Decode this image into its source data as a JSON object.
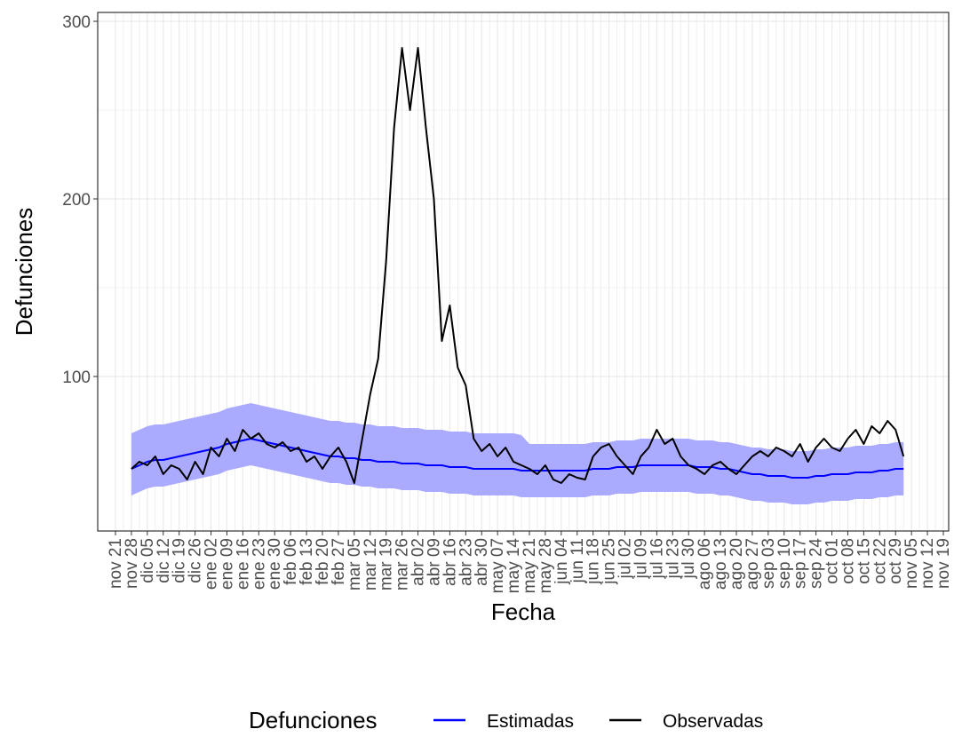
{
  "chart_data": {
    "type": "line",
    "x_label": "Fecha",
    "y_label": "Defunciones",
    "legend_title": "Defunciones",
    "legend_position": "bottom",
    "grid": true,
    "ylim": [
      13,
      305
    ],
    "yticks": [
      100,
      200,
      300
    ],
    "categories": [
      "nov 21",
      null,
      "nov 28",
      null,
      "dic 05",
      null,
      "dic 12",
      null,
      "dic 19",
      null,
      "dic 26",
      null,
      "ene 02",
      null,
      "ene 09",
      null,
      "ene 16",
      null,
      "ene 23",
      null,
      "ene 30",
      null,
      "feb 06",
      null,
      "feb 13",
      null,
      "feb 20",
      null,
      "feb 27",
      null,
      "mar 05",
      null,
      "mar 12",
      null,
      "mar 19",
      null,
      "mar 26",
      null,
      "abr 02",
      null,
      "abr 09",
      null,
      "abr 16",
      null,
      "abr 23",
      null,
      "abr 30",
      null,
      "may 07",
      null,
      "may 14",
      null,
      "may 21",
      null,
      "may 28",
      null,
      "jun 04",
      null,
      "jun 11",
      null,
      "jun 18",
      null,
      "jun 25",
      null,
      "jul 02",
      null,
      "jul 09",
      null,
      "jul 16",
      null,
      "jul 23",
      null,
      "jul 30",
      null,
      "ago 06",
      null,
      "ago 13",
      null,
      "ago 20",
      null,
      "ago 27",
      null,
      "sep 03",
      null,
      "sep 10",
      null,
      "sep 17",
      null,
      "sep 24",
      null,
      "oct 01",
      null,
      "oct 08",
      null,
      "oct 15",
      null,
      "oct 22",
      null,
      "oct 29",
      null,
      "nov 05",
      null,
      "nov 12",
      null,
      "nov 19"
    ],
    "band": {
      "color": "#aaaaff",
      "lower": [
        null,
        null,
        33,
        35,
        37,
        38,
        38,
        39,
        40,
        41,
        42,
        43,
        44,
        45,
        47,
        48,
        49,
        50,
        49,
        48,
        47,
        46,
        45,
        44,
        43,
        42,
        41,
        40,
        40,
        39,
        39,
        38,
        38,
        37,
        37,
        37,
        36,
        36,
        36,
        35,
        35,
        35,
        34,
        34,
        34,
        33,
        33,
        33,
        33,
        33,
        33,
        32,
        32,
        32,
        32,
        32,
        32,
        32,
        32,
        32,
        33,
        33,
        33,
        34,
        34,
        34,
        35,
        35,
        35,
        35,
        35,
        35,
        35,
        34,
        34,
        34,
        33,
        33,
        32,
        31,
        30,
        30,
        29,
        29,
        29,
        28,
        28,
        28,
        29,
        29,
        30,
        30,
        30,
        31,
        31,
        31,
        32,
        32,
        33,
        33,
        null,
        null,
        null,
        null,
        null
      ],
      "upper": [
        null,
        null,
        68,
        70,
        72,
        73,
        73,
        74,
        75,
        76,
        77,
        78,
        79,
        80,
        82,
        83,
        84,
        85,
        84,
        83,
        82,
        81,
        80,
        79,
        78,
        77,
        76,
        75,
        75,
        74,
        74,
        73,
        73,
        72,
        72,
        72,
        71,
        71,
        71,
        70,
        70,
        70,
        69,
        69,
        69,
        68,
        68,
        68,
        68,
        68,
        68,
        67,
        62,
        62,
        62,
        62,
        62,
        62,
        62,
        62,
        63,
        63,
        63,
        64,
        64,
        64,
        65,
        65,
        65,
        65,
        65,
        65,
        65,
        64,
        64,
        64,
        63,
        63,
        62,
        61,
        60,
        60,
        59,
        59,
        59,
        58,
        58,
        58,
        59,
        59,
        60,
        60,
        60,
        61,
        61,
        61,
        62,
        62,
        63,
        63,
        null,
        null,
        null,
        null,
        null
      ]
    },
    "series": [
      {
        "name": "Estimadas",
        "color": "#0000ff",
        "values": [
          null,
          null,
          48,
          50,
          52,
          53,
          53,
          54,
          55,
          56,
          57,
          58,
          59,
          60,
          62,
          63,
          64,
          65,
          64,
          63,
          62,
          61,
          60,
          59,
          58,
          57,
          56,
          55,
          55,
          54,
          54,
          53,
          53,
          52,
          52,
          52,
          51,
          51,
          51,
          50,
          50,
          50,
          49,
          49,
          49,
          48,
          48,
          48,
          48,
          48,
          48,
          47,
          47,
          47,
          47,
          47,
          47,
          47,
          47,
          47,
          48,
          48,
          48,
          49,
          49,
          49,
          50,
          50,
          50,
          50,
          50,
          50,
          50,
          49,
          49,
          49,
          48,
          48,
          47,
          46,
          45,
          45,
          44,
          44,
          44,
          43,
          43,
          43,
          44,
          44,
          45,
          45,
          45,
          46,
          46,
          46,
          47,
          47,
          48,
          48,
          null,
          null,
          null,
          null,
          null
        ]
      },
      {
        "name": "Observadas",
        "color": "#000000",
        "values": [
          null,
          null,
          48,
          52,
          50,
          55,
          45,
          50,
          48,
          42,
          52,
          45,
          60,
          55,
          65,
          58,
          70,
          65,
          68,
          62,
          60,
          63,
          58,
          60,
          52,
          55,
          48,
          55,
          60,
          52,
          40,
          65,
          90,
          110,
          165,
          240,
          285,
          250,
          285,
          240,
          200,
          120,
          140,
          105,
          95,
          65,
          58,
          62,
          55,
          60,
          52,
          50,
          48,
          45,
          50,
          42,
          40,
          45,
          43,
          42,
          55,
          60,
          62,
          55,
          50,
          45,
          55,
          60,
          70,
          62,
          65,
          55,
          50,
          48,
          45,
          50,
          52,
          48,
          45,
          50,
          55,
          58,
          55,
          60,
          58,
          55,
          62,
          52,
          60,
          65,
          60,
          58,
          65,
          70,
          62,
          72,
          68,
          75,
          70,
          55,
          null,
          null,
          null,
          null,
          null
        ]
      }
    ]
  }
}
